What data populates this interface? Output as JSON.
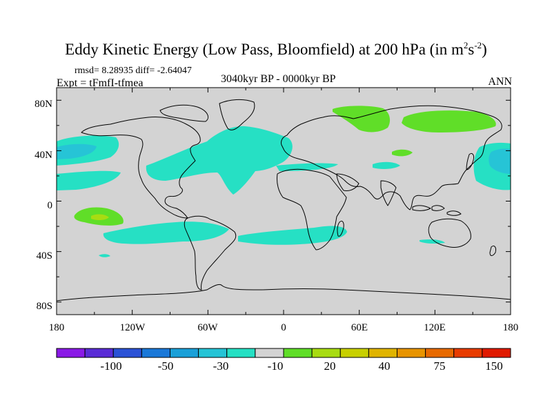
{
  "title": {
    "main": "Eddy Kinetic Energy (Low Pass, Bloomfield) at 200 hPa (in m",
    "sup1": "2",
    "mid": "s",
    "sup2": "-2",
    "close": ")"
  },
  "stats": "rmsd= 8.28935 diff= -2.64047",
  "experiment": "Expt = tFmfI-tfmea",
  "period": "3040kyr BP - 0000kyr BP",
  "season": "ANN",
  "map": {
    "projection": "cylindrical equidistant",
    "lon_range": [
      -180,
      180
    ],
    "lat_range": [
      -90,
      90
    ],
    "background_color": "#d3d3d3",
    "coastline_color": "#000000",
    "y_ticks": [
      "80N",
      "40N",
      "0",
      "40S",
      "80S"
    ],
    "x_ticks": [
      "180",
      "120W",
      "60W",
      "0",
      "60E",
      "120E",
      "180"
    ]
  },
  "colorbar": {
    "colors": [
      "#8a1ae6",
      "#5a2cd6",
      "#2b52d6",
      "#1a78d8",
      "#1aa0d8",
      "#26c4d6",
      "#26e0c4",
      "#d3d3d3",
      "#60de28",
      "#a8dc12",
      "#c8d000",
      "#e0b400",
      "#e89400",
      "#e86a00",
      "#e83c00",
      "#e01a00"
    ],
    "labels": [
      "-100",
      "-50",
      "-30",
      "-10",
      "20",
      "40",
      "75",
      "150"
    ]
  }
}
